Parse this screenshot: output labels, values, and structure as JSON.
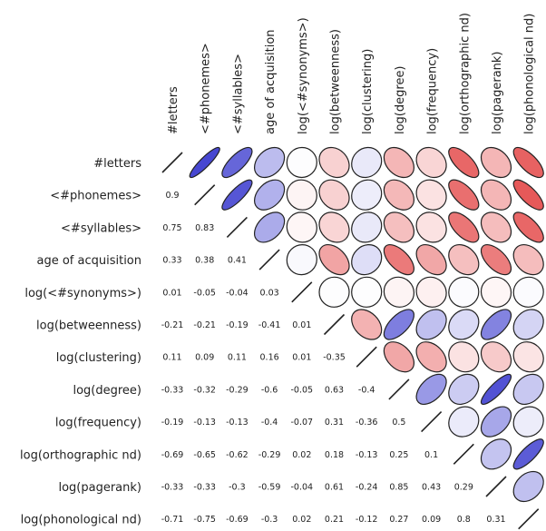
{
  "chart_data": {
    "type": "heatmap",
    "subtype": "correlation-ellipse-matrix",
    "variables": [
      "#letters",
      "<#phonemes>",
      "<#syllables>",
      "age of acquisition",
      "log(<#synonyms>)",
      "log(betweenness)",
      "log(clustering)",
      "log(degree)",
      "log(frequency)",
      "log(orthographic nd)",
      "log(pagerank)",
      "log(phonological nd)"
    ],
    "correlations": [
      [
        1,
        0.9,
        0.75,
        0.33,
        0.01,
        -0.21,
        0.11,
        -0.33,
        -0.19,
        -0.69,
        -0.33,
        -0.71
      ],
      [
        0.9,
        1,
        0.83,
        0.38,
        -0.05,
        -0.21,
        0.09,
        -0.32,
        -0.13,
        -0.65,
        -0.33,
        -0.75
      ],
      [
        0.75,
        0.83,
        1,
        0.41,
        -0.04,
        -0.19,
        0.11,
        -0.29,
        -0.13,
        -0.62,
        -0.3,
        -0.69
      ],
      [
        0.33,
        0.38,
        0.41,
        1,
        0.03,
        -0.41,
        0.16,
        -0.6,
        -0.4,
        -0.29,
        -0.59,
        -0.3
      ],
      [
        0.01,
        -0.05,
        -0.04,
        0.03,
        1,
        0.01,
        0.01,
        -0.05,
        -0.07,
        0.02,
        -0.04,
        0.02
      ],
      [
        -0.21,
        -0.21,
        -0.19,
        -0.41,
        0.01,
        1,
        -0.35,
        0.63,
        0.31,
        0.18,
        0.61,
        0.21
      ],
      [
        0.11,
        0.09,
        0.11,
        0.16,
        0.01,
        -0.35,
        1,
        -0.4,
        -0.36,
        -0.13,
        -0.24,
        -0.12
      ],
      [
        -0.33,
        -0.32,
        -0.29,
        -0.6,
        -0.05,
        0.63,
        -0.4,
        1,
        0.5,
        0.25,
        0.85,
        0.27
      ],
      [
        -0.19,
        -0.13,
        -0.13,
        -0.4,
        -0.07,
        0.31,
        -0.36,
        0.5,
        1,
        0.1,
        0.43,
        0.09
      ],
      [
        -0.69,
        -0.65,
        -0.62,
        -0.29,
        0.02,
        0.18,
        -0.13,
        0.25,
        0.1,
        1,
        0.29,
        0.8
      ],
      [
        -0.33,
        -0.33,
        -0.3,
        -0.59,
        -0.04,
        0.61,
        -0.24,
        0.85,
        0.43,
        0.29,
        1,
        0.31
      ],
      [
        -0.71,
        -0.75,
        -0.69,
        -0.3,
        0.02,
        0.21,
        -0.12,
        0.27,
        0.09,
        0.8,
        0.31,
        1
      ]
    ],
    "upper_triangle": "ellipses",
    "lower_triangle": "numbers",
    "diagonal": "line",
    "colors": {
      "positive": "#3333cc",
      "neutral": "#ffffff",
      "negative": "#dd2222",
      "outline": "#222222"
    }
  }
}
